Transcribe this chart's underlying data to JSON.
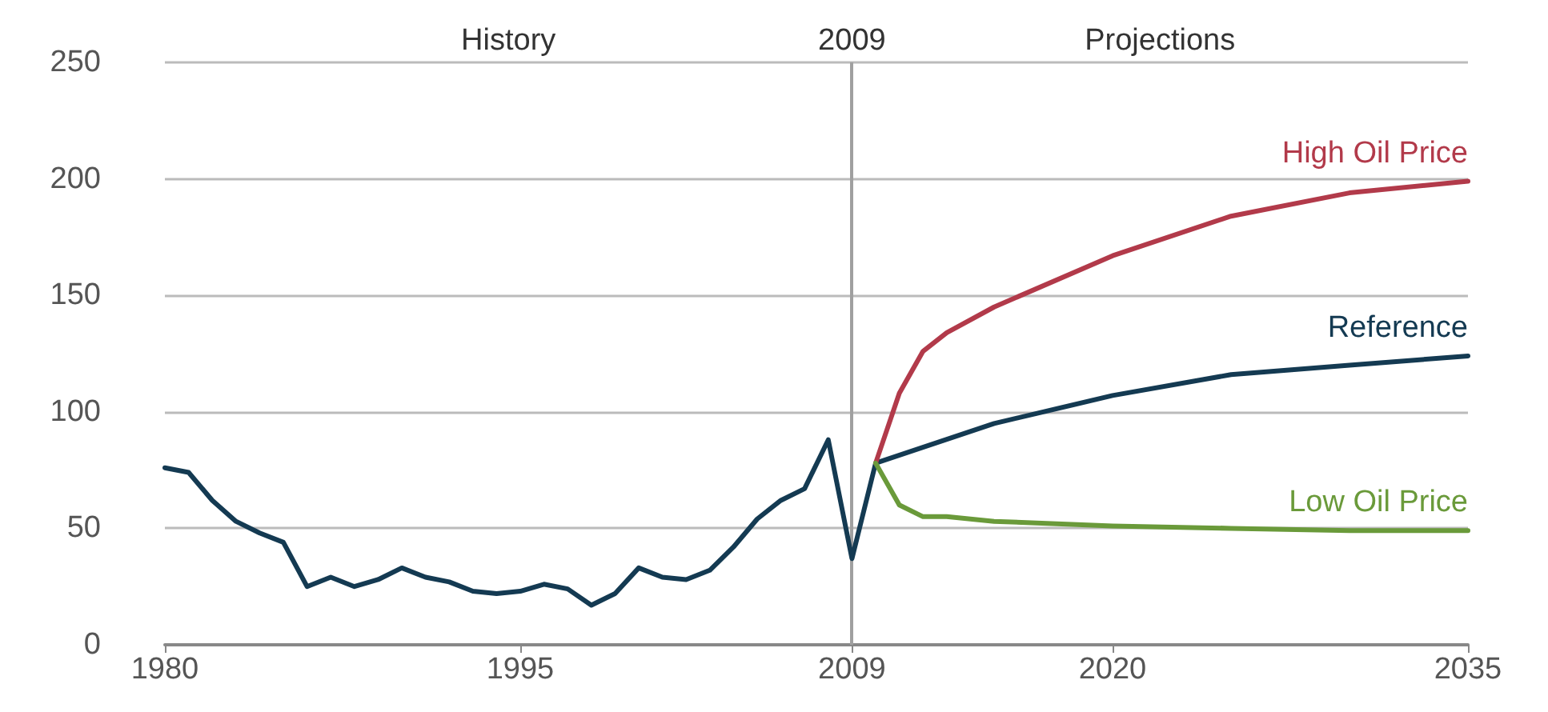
{
  "chart_data": {
    "type": "line",
    "xlim": [
      1980,
      2035
    ],
    "xticks": [
      1980,
      1995,
      2009,
      2020,
      2035
    ],
    "ylim": [
      0,
      250
    ],
    "yticks": [
      0,
      50,
      100,
      150,
      200,
      250
    ],
    "grid": "y",
    "marker": "none",
    "line_style": "solid",
    "ref_lines": [
      {
        "axis": "x",
        "value": 2009,
        "label": "2009",
        "color": "#a0a0a0"
      }
    ],
    "annotations": [
      "History",
      "Projections"
    ],
    "series": [
      {
        "name": "Reference",
        "color": "#143a52",
        "x": [
          1980,
          1981,
          1982,
          1983,
          1984,
          1985,
          1986,
          1987,
          1988,
          1989,
          1990,
          1991,
          1992,
          1993,
          1994,
          1995,
          1996,
          1997,
          1998,
          1999,
          2000,
          2001,
          2002,
          2003,
          2004,
          2005,
          2006,
          2007,
          2008,
          2009,
          2010,
          2015,
          2020,
          2025,
          2030,
          2035
        ],
        "values": [
          76,
          74,
          62,
          53,
          48,
          44,
          25,
          29,
          25,
          28,
          33,
          29,
          27,
          23,
          22,
          23,
          26,
          24,
          17,
          22,
          33,
          29,
          28,
          32,
          42,
          54,
          62,
          67,
          88,
          37,
          78,
          95,
          107,
          116,
          120,
          124
        ]
      },
      {
        "name": "High Oil Price",
        "color": "#b23a4a",
        "x": [
          2010,
          2011,
          2012,
          2013,
          2015,
          2020,
          2025,
          2030,
          2035
        ],
        "values": [
          78,
          108,
          126,
          134,
          145,
          167,
          184,
          194,
          199
        ]
      },
      {
        "name": "Low Oil Price",
        "color": "#6a9a3a",
        "x": [
          2010,
          2011,
          2012,
          2013,
          2015,
          2020,
          2025,
          2030,
          2035
        ],
        "values": [
          78,
          60,
          55,
          55,
          53,
          51,
          50,
          49,
          49
        ]
      }
    ]
  }
}
